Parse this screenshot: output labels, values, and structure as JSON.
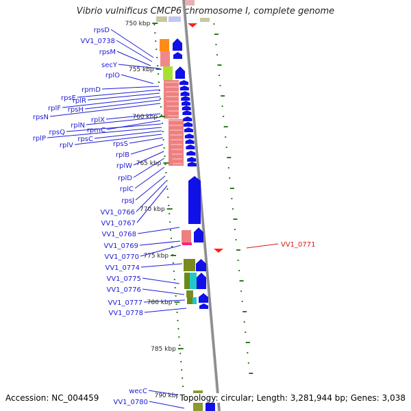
{
  "title": "Vibrio vulnificus CMCP6 chromosome I, complete genome",
  "footer": {
    "accession": "Accession: NC_004459",
    "summary": "Topology: circular; Length: 3,281,944 bp; Genes: 3,038"
  },
  "colors": {
    "gene_label": "#1a1ad6",
    "highlight_label": "#e01010",
    "strand_arrow": "#1010e8",
    "rrna_salmon": "#ee8080",
    "tick_green": "#2a7a1a",
    "backbone": "#8c8c8c"
  },
  "scale_ticks": [
    "750 kbp",
    "755 kbp",
    "760 kbp",
    "765 kbp",
    "770 kbp",
    "775 kbp",
    "780 kbp",
    "785 kbp",
    "790 kbp"
  ],
  "gene_labels": [
    "rpsD",
    "VV1_0738",
    "rpsM",
    "secY",
    "rplO",
    "rpmD",
    "rpsE",
    "rplR",
    "rplF",
    "rpsH",
    "rpsN",
    "rplX",
    "rplN",
    "rpmC",
    "rpsQ",
    "rplP",
    "rpsC",
    "rplV",
    "rpsS",
    "rplB",
    "rplW",
    "rplD",
    "rplC",
    "rpsJ",
    "VV1_0766",
    "VV1_0767",
    "VV1_0768",
    "VV1_0769",
    "VV1_0770",
    "VV1_0774",
    "VV1_0775",
    "VV1_0776",
    "VV1_0777",
    "VV1_0778",
    "wecC",
    "VV1_0780"
  ],
  "highlight_label": "VV1_0771"
}
